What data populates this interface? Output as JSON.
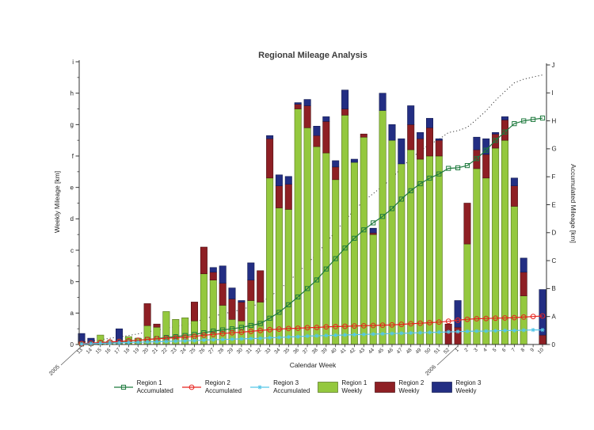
{
  "title": "Regional Mileage Analysis",
  "axes": {
    "x": {
      "label": "Calendar Week",
      "tick_labels": [
        "13",
        "14",
        "15",
        "16",
        "17",
        "18",
        "19",
        "20",
        "21",
        "22",
        "23",
        "24",
        "25",
        "26",
        "27",
        "28",
        "29",
        "30",
        "31",
        "32",
        "33",
        "34",
        "35",
        "36",
        "37",
        "38",
        "39",
        "40",
        "41",
        "42",
        "43",
        "44",
        "45",
        "46",
        "47",
        "48",
        "49",
        "50",
        "51",
        "52",
        "1",
        "2",
        "3",
        "4",
        "5",
        "6",
        "7",
        "8",
        "9",
        "10"
      ],
      "year_markers": [
        {
          "label": "2005",
          "index": 0
        },
        {
          "label": "2006",
          "index": 40
        }
      ]
    },
    "y_left": {
      "label": "Weekly Mileage [km]",
      "tick_labels": [
        "0",
        "a",
        "b",
        "c",
        "d",
        "e",
        "f",
        "g",
        "h",
        "i"
      ],
      "range": [
        0,
        9
      ]
    },
    "y_right": {
      "label": "Accumulated Mileage [km]",
      "tick_labels": [
        "0",
        "A",
        "B",
        "C",
        "D",
        "E",
        "F",
        "G",
        "H",
        "I",
        "J"
      ],
      "range": [
        0,
        10
      ]
    }
  },
  "legend": {
    "items": [
      {
        "id": "region-1-accumulated",
        "label_line1": "Region 1",
        "label_line2": "Accumulated",
        "type": "line",
        "marker": "square",
        "color": "#1e7a3e"
      },
      {
        "id": "region-2-accumulated",
        "label_line1": "Region 2",
        "label_line2": "Accumulated",
        "type": "line",
        "marker": "circle",
        "color": "#e8231e"
      },
      {
        "id": "region-3-accumulated",
        "label_line1": "Region 3",
        "label_line2": "Accumulated",
        "type": "line",
        "marker": "asterisk",
        "color": "#55c6e8"
      },
      {
        "id": "region-1-weekly",
        "label_line1": "Region 1",
        "label_line2": "Weekly",
        "type": "patch",
        "color": "#94c83e",
        "edge": "#55731f"
      },
      {
        "id": "region-2-weekly",
        "label_line1": "Region 2",
        "label_line2": "Weekly",
        "type": "patch",
        "color": "#8e1f24",
        "edge": "#4d1013"
      },
      {
        "id": "region-3-weekly",
        "label_line1": "Region 3",
        "label_line2": "Weekly",
        "type": "patch",
        "color": "#232e83",
        "edge": "#131c52"
      }
    ]
  },
  "colors": {
    "region1_weekly": "#94c83e",
    "region2_weekly": "#8e1f24",
    "region3_weekly": "#232e83",
    "region1_accumulated": "#1e7a3e",
    "region2_accumulated": "#e8231e",
    "region3_accumulated": "#55c6e8",
    "total_dotted": "#3a3a3a",
    "axis": "#333333"
  },
  "chart_data": {
    "type": "combo-stacked-bar-line",
    "title": "Regional Mileage Analysis",
    "xlabel": "Calendar Week",
    "ylabel_left": "Weekly Mileage [km]",
    "ylabel_right": "Accumulated Mileage [km]",
    "grid": false,
    "legend_position": "bottom",
    "ylim_left": [
      0,
      9
    ],
    "ylim_right": [
      0,
      10
    ],
    "categories": [
      "13",
      "14",
      "15",
      "16",
      "17",
      "18",
      "19",
      "20",
      "21",
      "22",
      "23",
      "24",
      "25",
      "26",
      "27",
      "28",
      "29",
      "30",
      "31",
      "32",
      "33",
      "34",
      "35",
      "36",
      "37",
      "38",
      "39",
      "40",
      "41",
      "42",
      "43",
      "44",
      "45",
      "46",
      "47",
      "48",
      "49",
      "50",
      "51",
      "52",
      "1",
      "2",
      "3",
      "4",
      "5",
      "6",
      "7",
      "8",
      "9",
      "10"
    ],
    "x_years": [
      {
        "label": "2005",
        "index": 0
      },
      {
        "label": "2006",
        "index": 40
      }
    ],
    "bar_series": [
      {
        "name": "Region 1 Weekly",
        "axis": "left",
        "color": "#94c83e",
        "edge": "#55731f",
        "values": [
          0.05,
          0.05,
          0.3,
          0.1,
          0.05,
          0.25,
          0.2,
          0.6,
          0.55,
          1.05,
          0.8,
          0.85,
          0.75,
          2.25,
          2.05,
          1.25,
          0.8,
          0.75,
          1.4,
          1.35,
          5.3,
          4.35,
          4.3,
          7.5,
          6.9,
          6.3,
          6.1,
          5.25,
          7.3,
          5.8,
          6.6,
          3.5,
          7.45,
          6.5,
          5.75,
          6.2,
          5.9,
          6.0,
          6.0,
          0,
          0,
          3.2,
          5.6,
          5.3,
          6.25,
          6.5,
          4.4,
          1.55,
          0,
          0
        ]
      },
      {
        "name": "Region 2 Weekly",
        "axis": "left",
        "color": "#8e1f24",
        "edge": "#4d1013",
        "values": [
          0.05,
          0,
          0,
          0,
          0,
          0,
          0,
          0.7,
          0.1,
          0,
          0,
          0,
          0.6,
          0.85,
          0.25,
          0.7,
          0.65,
          0.6,
          0.65,
          1.0,
          1.25,
          0.7,
          0.8,
          0.15,
          0.7,
          0.35,
          1.0,
          0.4,
          0.2,
          0,
          0.1,
          0.05,
          0,
          0,
          0,
          0.8,
          0.65,
          0.9,
          0.5,
          0.65,
          0.55,
          1.3,
          0.6,
          0.75,
          0.45,
          0.65,
          0.65,
          0.75,
          0,
          0.3
        ]
      },
      {
        "name": "Region 3 Weekly",
        "axis": "left",
        "color": "#232e83",
        "edge": "#131c52",
        "values": [
          0.25,
          0.15,
          0,
          0,
          0.45,
          0,
          0,
          0,
          0,
          0,
          0,
          0,
          0,
          0,
          0.15,
          0.55,
          0.35,
          0.05,
          0.55,
          0,
          0.1,
          0.35,
          0.25,
          0.05,
          0.2,
          0.3,
          0.15,
          0.2,
          0.6,
          0.1,
          0,
          0.15,
          0.55,
          0.5,
          0.8,
          0.6,
          0.2,
          0.3,
          0.05,
          0,
          0.85,
          0,
          0.4,
          0.5,
          0.05,
          0.1,
          0.25,
          0.45,
          0,
          1.45
        ]
      }
    ],
    "line_series": [
      {
        "name": "Region 1 Accumulated",
        "axis": "right",
        "color": "#1e7a3e",
        "marker": "square",
        "style": "solid",
        "values": [
          0.02,
          0.04,
          0.06,
          0.08,
          0.1,
          0.12,
          0.15,
          0.18,
          0.21,
          0.25,
          0.28,
          0.32,
          0.36,
          0.42,
          0.48,
          0.52,
          0.56,
          0.61,
          0.68,
          0.75,
          0.94,
          1.15,
          1.42,
          1.7,
          2.0,
          2.31,
          2.7,
          3.07,
          3.45,
          3.8,
          4.1,
          4.35,
          4.58,
          4.86,
          5.2,
          5.5,
          5.75,
          5.95,
          6.1,
          6.3,
          6.32,
          6.4,
          6.65,
          6.95,
          7.3,
          7.6,
          7.9,
          8.0,
          8.05,
          8.1
        ]
      },
      {
        "name": "Region 2 Accumulated",
        "axis": "right",
        "color": "#e8231e",
        "marker": "circle",
        "style": "solid",
        "values": [
          0.03,
          0.05,
          0.07,
          0.09,
          0.11,
          0.13,
          0.15,
          0.18,
          0.2,
          0.22,
          0.24,
          0.26,
          0.29,
          0.33,
          0.36,
          0.39,
          0.42,
          0.44,
          0.47,
          0.5,
          0.53,
          0.55,
          0.57,
          0.58,
          0.6,
          0.61,
          0.63,
          0.64,
          0.65,
          0.66,
          0.67,
          0.68,
          0.69,
          0.7,
          0.72,
          0.74,
          0.76,
          0.78,
          0.8,
          0.83,
          0.87,
          0.9,
          0.92,
          0.93,
          0.94,
          0.95,
          0.96,
          0.98,
          1.0,
          1.02
        ]
      },
      {
        "name": "Region 3 Accumulated",
        "axis": "right",
        "color": "#55c6e8",
        "marker": "asterisk",
        "style": "solid",
        "values": [
          0.02,
          0.03,
          0.04,
          0.05,
          0.06,
          0.07,
          0.08,
          0.09,
          0.1,
          0.11,
          0.12,
          0.13,
          0.14,
          0.16,
          0.17,
          0.18,
          0.19,
          0.2,
          0.21,
          0.22,
          0.24,
          0.25,
          0.27,
          0.28,
          0.3,
          0.31,
          0.32,
          0.33,
          0.34,
          0.35,
          0.36,
          0.37,
          0.38,
          0.39,
          0.4,
          0.41,
          0.42,
          0.43,
          0.44,
          0.45,
          0.46,
          0.47,
          0.48,
          0.48,
          0.49,
          0.5,
          0.5,
          0.51,
          0.52,
          0.52
        ]
      },
      {
        "name": "Total Accumulated",
        "axis": "right",
        "color": "#3a3a3a",
        "marker": "none",
        "style": "dotted",
        "values": [
          0.07,
          0.12,
          0.17,
          0.22,
          0.27,
          0.32,
          0.38,
          0.45,
          0.51,
          0.58,
          0.64,
          0.71,
          0.79,
          0.91,
          1.01,
          1.09,
          1.17,
          1.25,
          1.36,
          1.47,
          1.71,
          1.95,
          2.26,
          2.56,
          2.9,
          3.23,
          3.65,
          4.04,
          4.44,
          4.81,
          5.13,
          5.4,
          5.66,
          5.95,
          6.32,
          6.65,
          6.93,
          7.16,
          7.34,
          7.58,
          7.65,
          7.77,
          8.05,
          8.36,
          8.73,
          9.05,
          9.36,
          9.49,
          9.57,
          9.64
        ]
      }
    ]
  }
}
